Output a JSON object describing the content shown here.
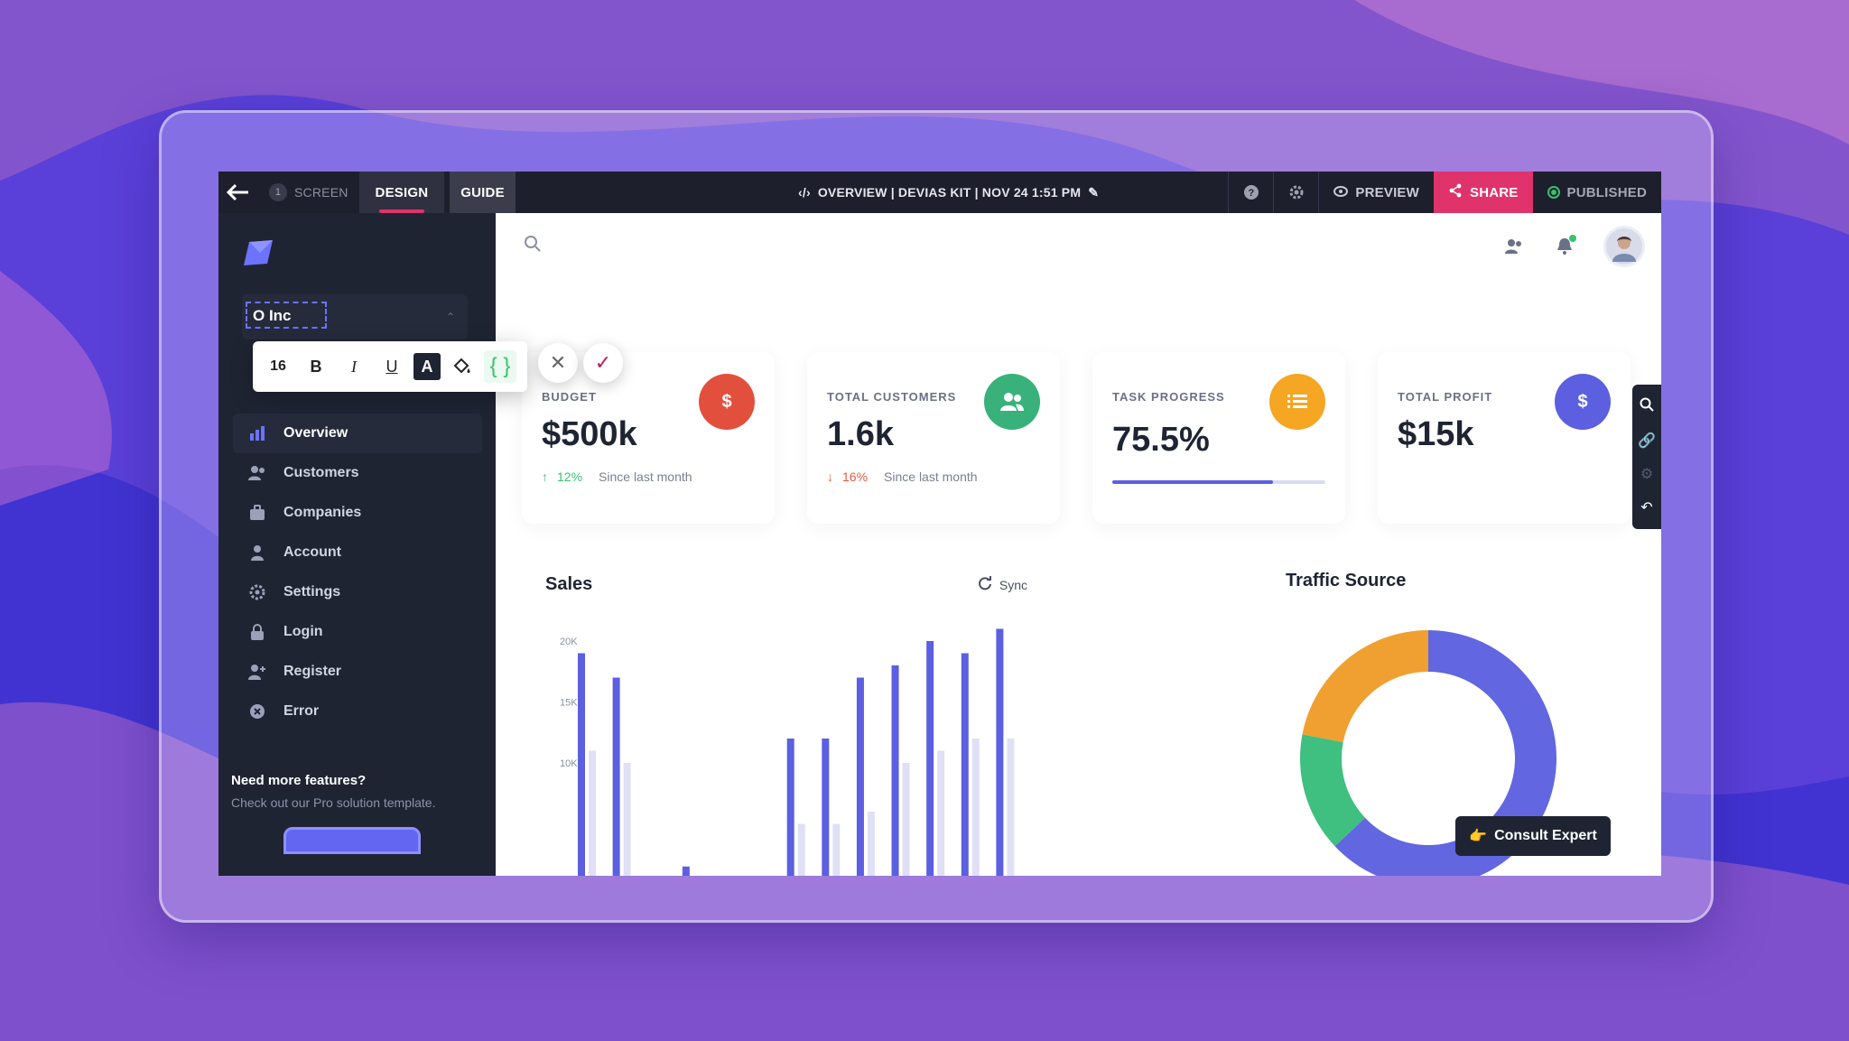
{
  "topbar": {
    "screen_num": "1",
    "screen_label": "SCREEN",
    "design_tab": "DESIGN",
    "guide_tab": "GUIDE",
    "doc_title": "OVERVIEW | DEVIAS KIT | NOV 24 1:51 PM",
    "preview_label": "PREVIEW",
    "share_label": "SHARE",
    "published_label": "PUBLISHED"
  },
  "sidebar": {
    "company_value": "O Inc",
    "items": [
      {
        "label": "Overview",
        "icon": "bar-chart-icon"
      },
      {
        "label": "Customers",
        "icon": "users-icon"
      },
      {
        "label": "Companies",
        "icon": "briefcase-icon"
      },
      {
        "label": "Account",
        "icon": "user-icon"
      },
      {
        "label": "Settings",
        "icon": "gear-icon"
      },
      {
        "label": "Login",
        "icon": "lock-icon"
      },
      {
        "label": "Register",
        "icon": "user-plus-icon"
      },
      {
        "label": "Error",
        "icon": "x-circle-icon"
      }
    ],
    "promo_title": "Need more features?",
    "promo_sub": "Check out our Pro solution template."
  },
  "format_toolbar": {
    "font_size": "16",
    "bold": "B",
    "italic": "I",
    "underline": "U",
    "text_color": "A",
    "code": "{ }"
  },
  "cards": [
    {
      "label": "BUDGET",
      "value": "$500k",
      "trend": "12%",
      "trend_dir": "up",
      "since": "Since last month",
      "icon": "$",
      "color": "#e2503d"
    },
    {
      "label": "TOTAL CUSTOMERS",
      "value": "1.6k",
      "trend": "16%",
      "trend_dir": "down",
      "since": "Since last month",
      "icon": "users",
      "color": "#38b27a"
    },
    {
      "label": "TASK PROGRESS",
      "value": "75.5%",
      "progress": 0.755,
      "icon": "list",
      "color": "#f5a623"
    },
    {
      "label": "TOTAL PROFIT",
      "value": "$15k",
      "icon": "$",
      "color": "#5b5fe0"
    }
  ],
  "sales": {
    "title": "Sales",
    "sync_label": "Sync"
  },
  "traffic": {
    "title": "Traffic Source"
  },
  "consult_label": "Consult Expert",
  "colors": {
    "primary": "#5b5fe0",
    "accent": "#e0336b",
    "sidebar": "#1f2433"
  },
  "chart_data": [
    {
      "type": "bar",
      "title": "Sales",
      "yticks": [
        "20K",
        "15K",
        "10K"
      ],
      "ylim": [
        0,
        20000
      ],
      "series": [
        {
          "values": [
            19000,
            17000,
            null,
            1500,
            null,
            null,
            12000,
            12000,
            17000,
            18000,
            20000,
            19000,
            21000
          ]
        },
        {
          "values": [
            11000,
            10000,
            null,
            null,
            null,
            null,
            5000,
            5000,
            6000,
            10000,
            11000,
            12000,
            12000
          ]
        }
      ]
    },
    {
      "type": "pie",
      "title": "Traffic Source",
      "values": [
        63,
        15,
        22
      ],
      "colors": [
        "#6266e0",
        "#3fbf80",
        "#f0a030"
      ]
    }
  ]
}
